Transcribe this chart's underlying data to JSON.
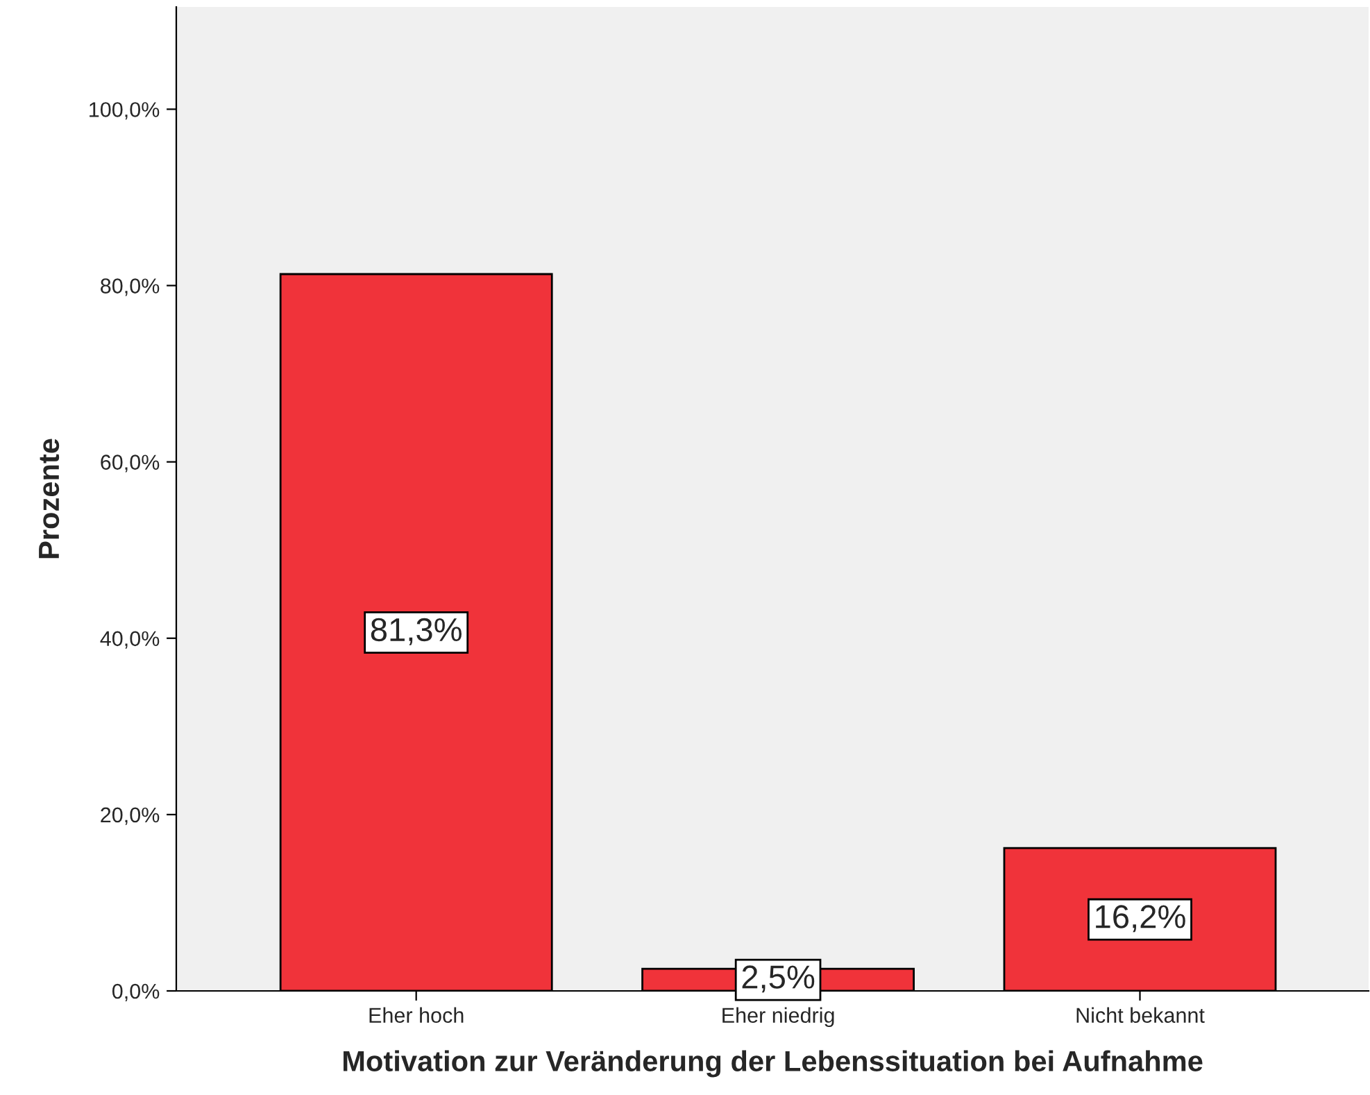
{
  "chart_data": {
    "type": "bar",
    "xlabel": "Motivation zur Veränderung der Lebenssituation bei Aufnahme",
    "ylabel": "Prozente",
    "categories": [
      "Eher hoch",
      "Eher niedrig",
      "Nicht bekannt"
    ],
    "values": [
      81.3,
      2.5,
      16.2
    ],
    "value_labels": [
      "81,3%",
      "2,5%",
      "16,2%"
    ],
    "color": "#f0333a",
    "ylim": [
      0,
      111.6
    ],
    "yticks": [
      {
        "value": 0,
        "label": "0,0%"
      },
      {
        "value": 20,
        "label": "20,0%"
      },
      {
        "value": 40,
        "label": "40,0%"
      },
      {
        "value": 60,
        "label": "60,0%"
      },
      {
        "value": 80,
        "label": "80,0%"
      },
      {
        "value": 100,
        "label": "100,0%"
      }
    ],
    "grid": false,
    "legend": false
  }
}
